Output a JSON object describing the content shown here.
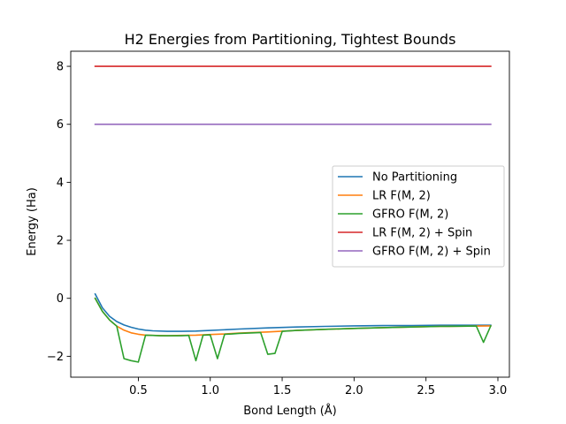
{
  "chart_data": {
    "type": "line",
    "title": "H2 Energies from Partitioning, Tightest Bounds",
    "xlabel": "Bond Length (Å)",
    "ylabel": "Energy (Ha)",
    "xlim": [
      0.03,
      3.08
    ],
    "ylim": [
      -2.72,
      8.52
    ],
    "xticks": [
      0.5,
      1.0,
      1.5,
      2.0,
      2.5,
      3.0
    ],
    "xtick_labels": [
      "0.5",
      "1.0",
      "1.5",
      "2.0",
      "2.5",
      "3.0"
    ],
    "yticks": [
      -2,
      0,
      2,
      4,
      6,
      8
    ],
    "ytick_labels": [
      "−2",
      "0",
      "2",
      "4",
      "6",
      "8"
    ],
    "grid": false,
    "legend_position": "center-right",
    "series": [
      {
        "name": "No Partitioning",
        "color": "#1f77b4",
        "x": [
          0.2,
          0.25,
          0.3,
          0.35,
          0.4,
          0.45,
          0.5,
          0.55,
          0.6,
          0.7,
          0.8,
          0.9,
          1.0,
          1.2,
          1.4,
          1.6,
          1.8,
          2.0,
          2.2,
          2.4,
          2.6,
          2.8,
          2.95
        ],
        "y": [
          0.15,
          -0.33,
          -0.62,
          -0.8,
          -0.92,
          -1.0,
          -1.06,
          -1.1,
          -1.12,
          -1.14,
          -1.14,
          -1.13,
          -1.11,
          -1.06,
          -1.02,
          -0.99,
          -0.97,
          -0.95,
          -0.94,
          -0.94,
          -0.93,
          -0.93,
          -0.93
        ]
      },
      {
        "name": "LR F(M, 2)",
        "color": "#ff7f0e",
        "x": [
          0.2,
          0.25,
          0.3,
          0.35,
          0.4,
          0.45,
          0.5,
          0.55,
          0.6,
          0.7,
          0.8,
          0.9,
          1.0,
          1.1,
          1.2,
          1.4,
          1.6,
          1.8,
          2.0,
          2.2,
          2.4,
          2.6,
          2.8,
          2.95
        ],
        "y": [
          0.0,
          -0.45,
          -0.75,
          -0.96,
          -1.1,
          -1.19,
          -1.24,
          -1.27,
          -1.28,
          -1.29,
          -1.28,
          -1.27,
          -1.25,
          -1.23,
          -1.2,
          -1.16,
          -1.11,
          -1.07,
          -1.04,
          -1.01,
          -0.99,
          -0.97,
          -0.96,
          -0.95
        ]
      },
      {
        "name": "GFRO F(M, 2)",
        "color": "#2ca02c",
        "x": [
          0.2,
          0.25,
          0.3,
          0.35,
          0.4,
          0.45,
          0.5,
          0.55,
          0.6,
          0.65,
          0.7,
          0.75,
          0.8,
          0.85,
          0.9,
          0.95,
          1.0,
          1.05,
          1.1,
          1.15,
          1.2,
          1.3,
          1.35,
          1.4,
          1.45,
          1.5,
          1.6,
          1.8,
          2.0,
          2.2,
          2.4,
          2.6,
          2.8,
          2.85,
          2.9,
          2.95
        ],
        "y": [
          0.0,
          -0.45,
          -0.75,
          -0.96,
          -2.08,
          -2.15,
          -2.2,
          -1.27,
          -1.28,
          -1.29,
          -1.29,
          -1.29,
          -1.29,
          -1.28,
          -2.15,
          -1.27,
          -1.26,
          -2.08,
          -1.24,
          -1.23,
          -1.21,
          -1.19,
          -1.18,
          -1.93,
          -1.9,
          -1.14,
          -1.11,
          -1.07,
          -1.04,
          -1.01,
          -0.99,
          -0.97,
          -0.96,
          -0.96,
          -1.52,
          -0.95
        ]
      },
      {
        "name": "LR F(M, 2) + Spin",
        "color": "#d62728",
        "x": [
          0.2,
          2.95
        ],
        "y": [
          8.0,
          8.0
        ]
      },
      {
        "name": "GFRO F(M, 2) + Spin",
        "color": "#9467bd",
        "x": [
          0.2,
          2.95
        ],
        "y": [
          6.0,
          6.0
        ]
      }
    ]
  }
}
